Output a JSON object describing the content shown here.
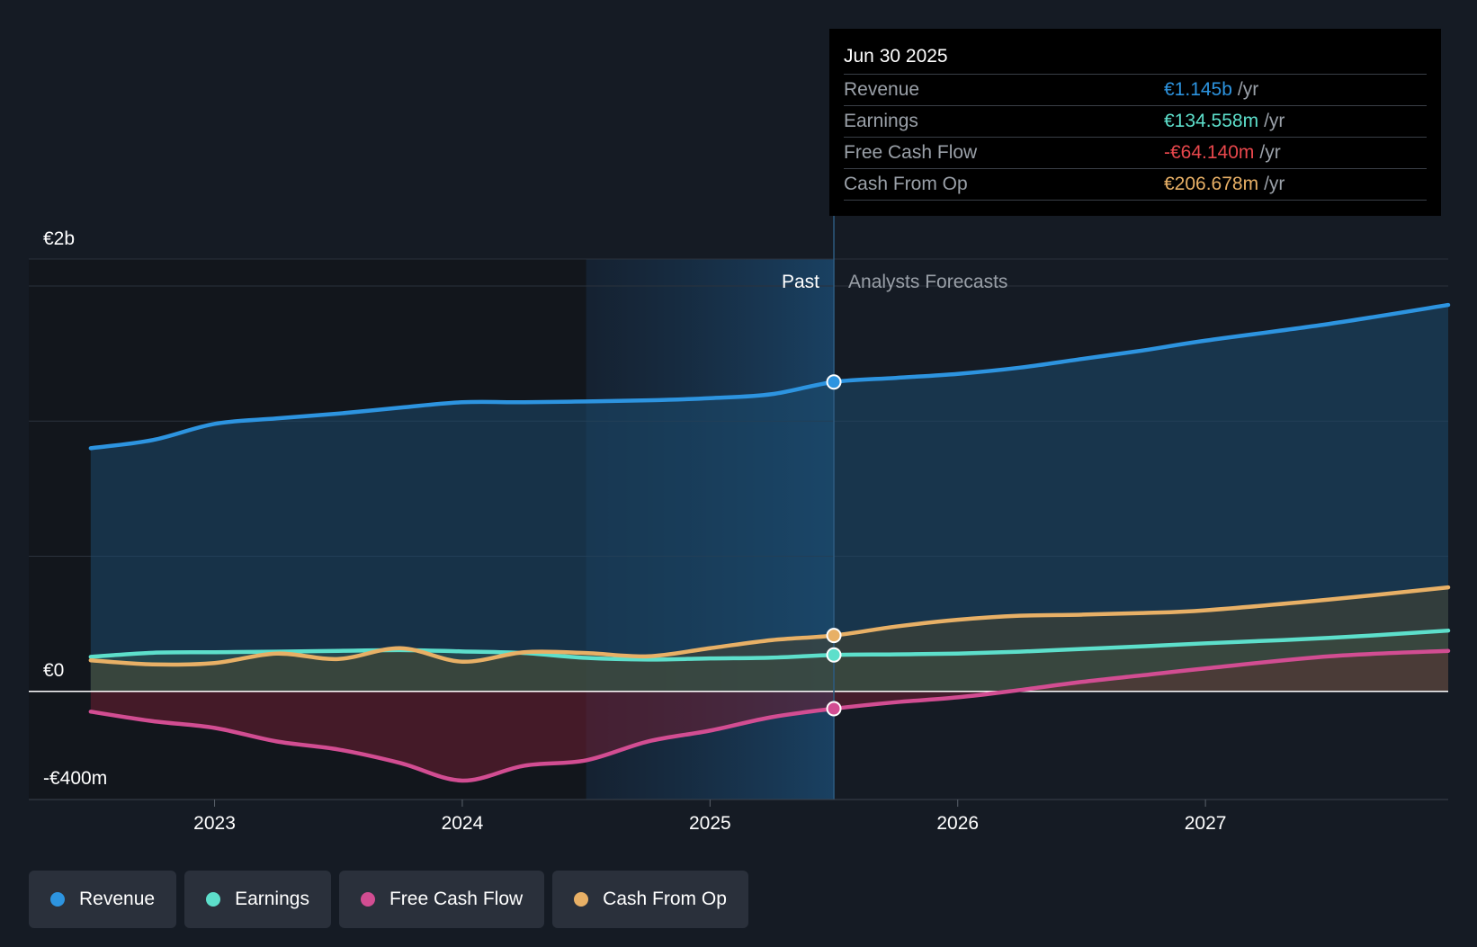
{
  "chart_data": {
    "type": "area",
    "y_ticks": [
      {
        "value": 2000,
        "label": "€2b"
      },
      {
        "value": 0,
        "label": "€0"
      },
      {
        "value": -400,
        "label": "-€400m"
      }
    ],
    "x_ticks": [
      {
        "value": 2023,
        "label": "2023"
      },
      {
        "value": 2024,
        "label": "2024"
      },
      {
        "value": 2025,
        "label": "2025"
      },
      {
        "value": 2026,
        "label": "2026"
      },
      {
        "value": 2027,
        "label": "2027"
      }
    ],
    "xlim": [
      2022.25,
      2027.98
    ],
    "ylim": [
      -400,
      1600
    ],
    "grid": true,
    "past_label": "Past",
    "forecast_label": "Analysts Forecasts",
    "past_start": 2024.5,
    "split_x": 2025.5,
    "series": [
      {
        "name": "Revenue",
        "color": "#2d94e0",
        "fill": "#1c4a6e",
        "x": [
          2022.5,
          2022.75,
          2023.0,
          2023.25,
          2023.5,
          2023.75,
          2024.0,
          2024.25,
          2024.5,
          2024.75,
          2025.0,
          2025.25,
          2025.5,
          2025.75,
          2026.0,
          2026.25,
          2026.5,
          2026.75,
          2027.0,
          2027.5,
          2027.98
        ],
        "values": [
          900,
          930,
          990,
          1010,
          1028,
          1050,
          1070,
          1070,
          1073,
          1077,
          1085,
          1100,
          1145,
          1160,
          1175,
          1198,
          1230,
          1262,
          1298,
          1360,
          1430
        ]
      },
      {
        "name": "Earnings",
        "color": "#5ddfcb",
        "fill": "#2f5a55",
        "x": [
          2022.5,
          2022.75,
          2023.0,
          2023.25,
          2023.5,
          2023.75,
          2024.0,
          2024.25,
          2024.5,
          2024.75,
          2025.0,
          2025.25,
          2025.5,
          2025.75,
          2026.0,
          2026.25,
          2026.5,
          2026.75,
          2027.0,
          2027.5,
          2027.98
        ],
        "values": [
          128,
          143,
          145,
          147,
          150,
          153,
          148,
          142,
          124,
          118,
          122,
          125,
          135,
          137,
          140,
          147,
          157,
          167,
          178,
          198,
          225
        ]
      },
      {
        "name": "Free Cash Flow",
        "color": "#d24d92",
        "fill": "#6e1f33",
        "x": [
          2022.5,
          2022.75,
          2023.0,
          2023.25,
          2023.5,
          2023.75,
          2024.0,
          2024.25,
          2024.5,
          2024.75,
          2025.0,
          2025.25,
          2025.5,
          2025.75,
          2026.0,
          2026.25,
          2026.5,
          2026.75,
          2027.0,
          2027.5,
          2027.98
        ],
        "values": [
          -75,
          -110,
          -135,
          -185,
          -215,
          -265,
          -330,
          -275,
          -255,
          -185,
          -145,
          -95,
          -64,
          -40,
          -22,
          5,
          35,
          60,
          85,
          130,
          150
        ]
      },
      {
        "name": "Cash From Op",
        "color": "#e8b066",
        "fill": "#48432f",
        "x": [
          2022.5,
          2022.75,
          2023.0,
          2023.25,
          2023.5,
          2023.75,
          2024.0,
          2024.25,
          2024.5,
          2024.75,
          2025.0,
          2025.25,
          2025.5,
          2025.75,
          2026.0,
          2026.25,
          2026.5,
          2026.75,
          2027.0,
          2027.5,
          2027.98
        ],
        "values": [
          115,
          100,
          105,
          140,
          120,
          160,
          110,
          145,
          142,
          130,
          160,
          190,
          207,
          240,
          265,
          280,
          284,
          290,
          300,
          340,
          385
        ]
      }
    ]
  },
  "tooltip": {
    "date": "Jun 30 2025",
    "rows": [
      {
        "label": "Revenue",
        "value": "€1.145b",
        "unit": "/yr",
        "color": "#2d94e0"
      },
      {
        "label": "Earnings",
        "value": "€134.558m",
        "unit": "/yr",
        "color": "#5ddfcb"
      },
      {
        "label": "Free Cash Flow",
        "value": "-€64.140m",
        "unit": "/yr",
        "color": "#e8474c"
      },
      {
        "label": "Cash From Op",
        "value": "€206.678m",
        "unit": "/yr",
        "color": "#e8b066"
      }
    ]
  },
  "legend": [
    {
      "label": "Revenue",
      "color": "#2d94e0"
    },
    {
      "label": "Earnings",
      "color": "#5ddfcb"
    },
    {
      "label": "Free Cash Flow",
      "color": "#d24d92"
    },
    {
      "label": "Cash From Op",
      "color": "#e8b066"
    }
  ]
}
